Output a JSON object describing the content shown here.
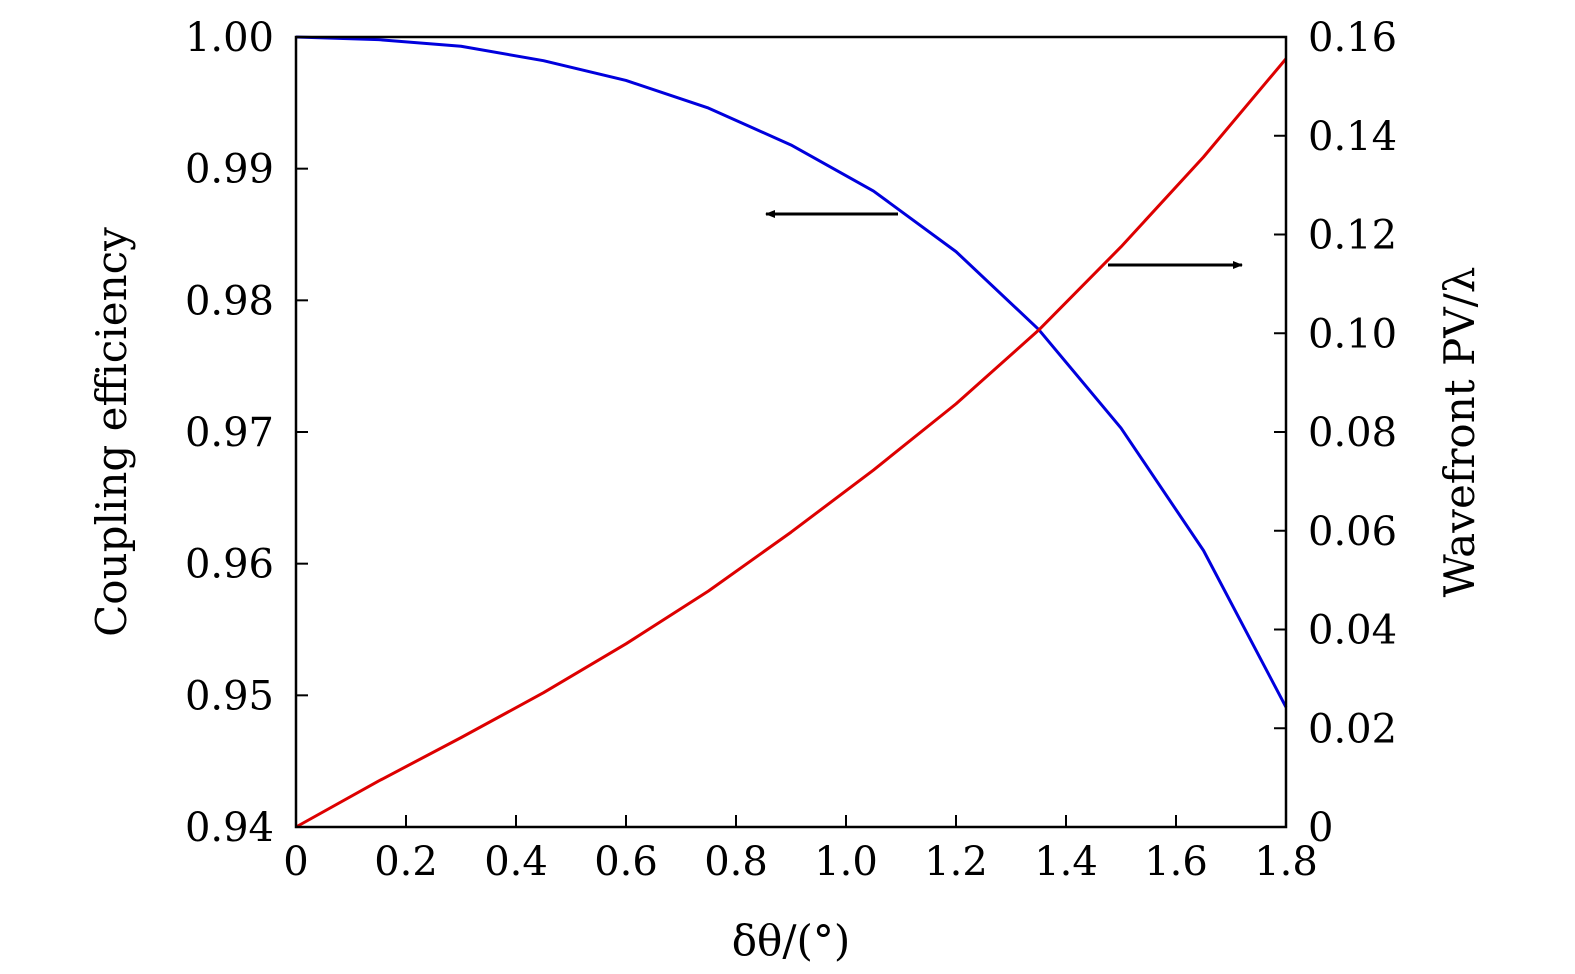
{
  "chart_data": {
    "type": "line",
    "title": "",
    "xlabel": "δθ/(°)",
    "ylabel_left": "Coupling efficiency",
    "ylabel_right": "Wavefront PV/λ",
    "xlim": [
      0,
      1.8
    ],
    "ylim_left": [
      0.94,
      1.0
    ],
    "ylim_right": [
      0,
      0.16
    ],
    "x_ticks": [
      "0",
      "0.2",
      "0.4",
      "0.6",
      "0.8",
      "1.0",
      "1.2",
      "1.4",
      "1.6",
      "1.8"
    ],
    "y_left_ticks": [
      "0.94",
      "0.95",
      "0.96",
      "0.97",
      "0.98",
      "0.99",
      "1.00"
    ],
    "y_right_ticks": [
      "0",
      "0.02",
      "0.04",
      "0.06",
      "0.08",
      "0.10",
      "0.12",
      "0.14",
      "0.16"
    ],
    "grid": false,
    "series": [
      {
        "axis": "left",
        "color": "#0000dd",
        "x": [
          0,
          0.15,
          0.3,
          0.45,
          0.6,
          0.75,
          0.9,
          1.05,
          1.2,
          1.35,
          1.5,
          1.65,
          1.8
        ],
        "y": [
          1.0,
          0.9998,
          0.9993,
          0.9982,
          0.9967,
          0.9946,
          0.9918,
          0.9883,
          0.9837,
          0.9778,
          0.9703,
          0.961,
          0.9491
        ]
      },
      {
        "axis": "right",
        "color": "#dd0000",
        "x": [
          0,
          0.15,
          0.3,
          0.45,
          0.6,
          0.75,
          0.9,
          1.05,
          1.2,
          1.35,
          1.5,
          1.65,
          1.8
        ],
        "y": [
          0,
          0.0093,
          0.0181,
          0.0272,
          0.0371,
          0.0478,
          0.0597,
          0.0723,
          0.0857,
          0.1006,
          0.1175,
          0.1357,
          0.1556
        ]
      }
    ],
    "annotations": [
      {
        "type": "arrow",
        "direction": "left",
        "points_to": "left-axis"
      },
      {
        "type": "arrow",
        "direction": "right",
        "points_to": "right-axis"
      }
    ]
  }
}
